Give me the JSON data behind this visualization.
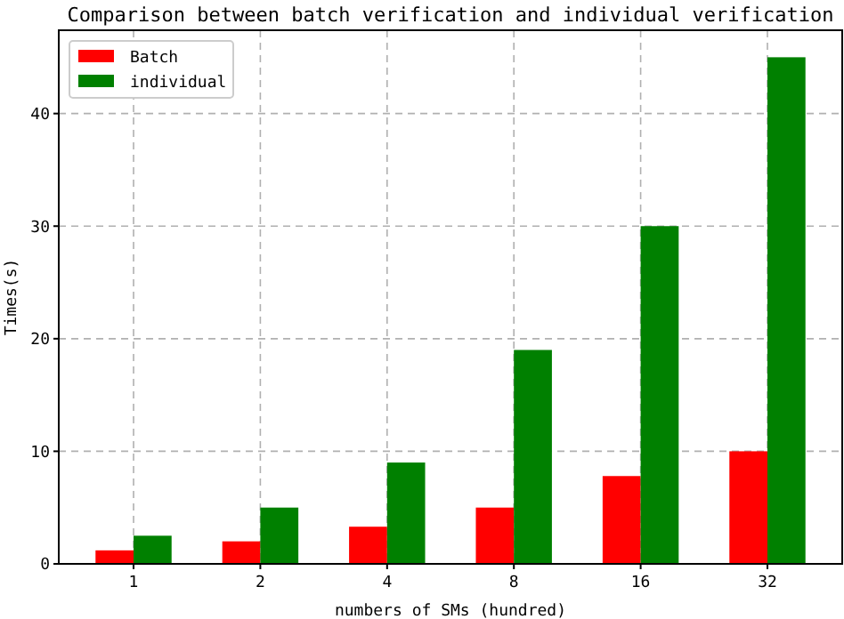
{
  "chart_data": {
    "type": "bar",
    "title": "Comparison between batch verification and individual verification",
    "xlabel": "numbers of SMs (hundred)",
    "ylabel": "Times(s)",
    "categories": [
      "1",
      "2",
      "4",
      "8",
      "16",
      "32"
    ],
    "series": [
      {
        "name": "Batch",
        "color": "#ff0000",
        "values": [
          1.2,
          2.0,
          3.3,
          5.0,
          7.8,
          10.0
        ]
      },
      {
        "name": "individual",
        "color": "#008000",
        "values": [
          2.5,
          5.0,
          9.0,
          19.0,
          30.0,
          45.0
        ]
      }
    ],
    "ylim": [
      0,
      47.4
    ],
    "yticks": [
      0,
      10,
      20,
      30,
      40
    ],
    "grid": true,
    "legend": "top left"
  }
}
